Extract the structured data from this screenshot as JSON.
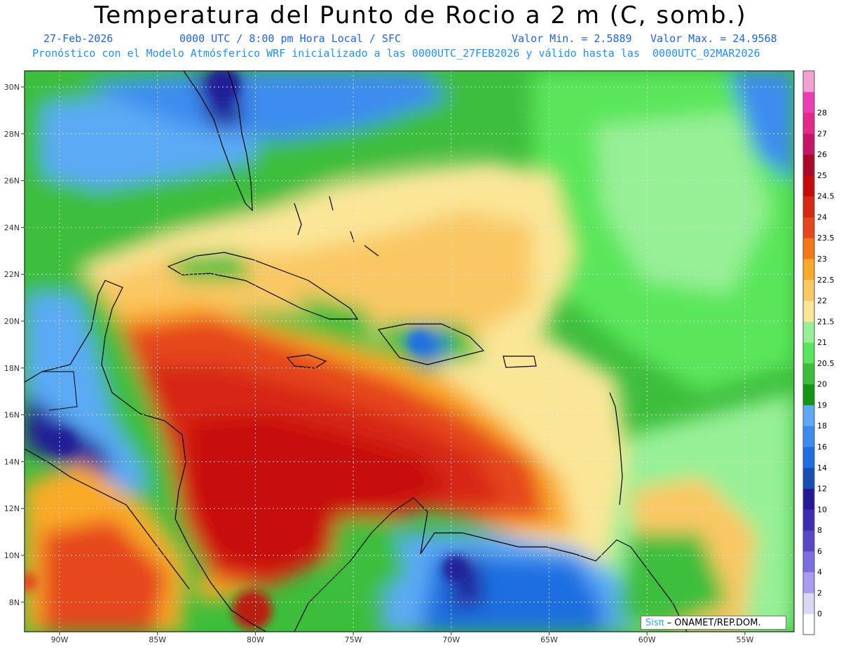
{
  "header": {
    "title": "Temperatura del Punto de Rocio a 2 m (C, somb.)",
    "date": "27-Feb-2026",
    "time": "0000 UTC / 8:00 pm Hora Local / SFC",
    "min_label": "Valor Min. = 2.5889",
    "max_label": "Valor Max. = 24.9568",
    "model_info": "Pronóstico con el Modelo Atmósferico WRF inicializado a las 0000UTC_27FEB2026 y válido hasta las  0000UTC_02MAR2026"
  },
  "map": {
    "lat_labels": [
      "30N",
      "28N",
      "26N",
      "24N",
      "22N",
      "20N",
      "18N",
      "16N",
      "14N",
      "12N",
      "10N",
      "8N"
    ],
    "lat_values": [
      30,
      28,
      26,
      24,
      22,
      20,
      18,
      16,
      14,
      12,
      10,
      8
    ],
    "lon_labels": [
      "90W",
      "85W",
      "80W",
      "75W",
      "70W",
      "65W",
      "60W",
      "55W"
    ],
    "lon_values": [
      -90,
      -85,
      -80,
      -75,
      -70,
      -65,
      -60,
      -55
    ]
  },
  "colorbar": {
    "labels": [
      "0",
      "2",
      "4",
      "6",
      "8",
      "10",
      "12",
      "14",
      "16",
      "18",
      "19",
      "20",
      "20.5",
      "21",
      "21.5",
      "22",
      "22.5",
      "23",
      "23.5",
      "24",
      "24.5",
      "25",
      "26",
      "27",
      "28"
    ],
    "colors": [
      "#ffffff",
      "#d9d9f5",
      "#a99bf2",
      "#7b6ee0",
      "#5847c9",
      "#3b2eb0",
      "#241a96",
      "#1450b4",
      "#1e6ee1",
      "#3c8cf0",
      "#5aaaf5",
      "#149614",
      "#3cbe3c",
      "#5ae65a",
      "#96f096",
      "#fae696",
      "#fac864",
      "#faaa28",
      "#f57814",
      "#e6461e",
      "#d72814",
      "#c80a0a",
      "#aa0a28",
      "#c81464",
      "#e6288c",
      "#f03cb4",
      "#f5a0d2"
    ],
    "colors_note": ""
  },
  "credit": {
    "brand": "Sis",
    "pi": "π",
    "org": " – ONAMET/REP.DOM."
  }
}
